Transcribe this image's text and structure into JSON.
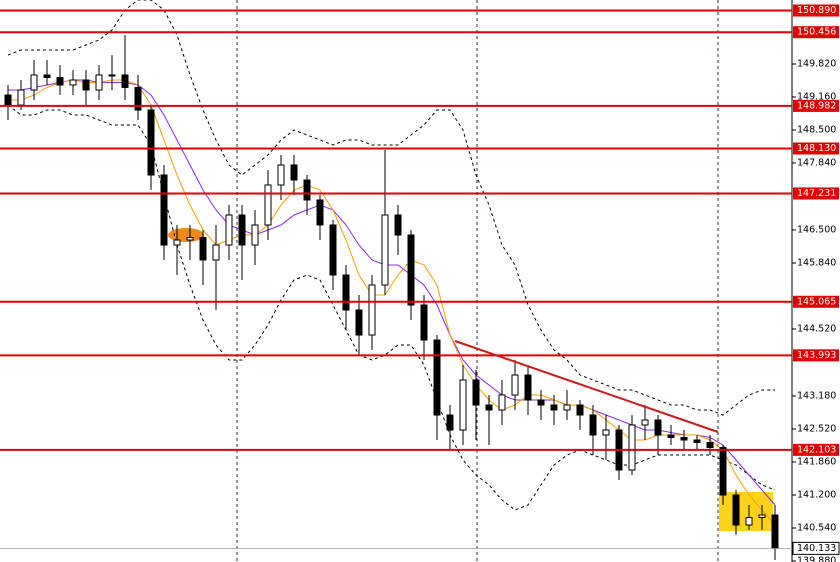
{
  "chart_data": {
    "type": "candlestick",
    "ylim": [
      139.86,
      151.1
    ],
    "yticks": [
      {
        "value": 149.82,
        "label": "149.820"
      },
      {
        "value": 149.16,
        "label": "149.160"
      },
      {
        "value": 148.5,
        "label": "148.500"
      },
      {
        "value": 147.84,
        "label": "147.840"
      },
      {
        "value": 146.5,
        "label": "146.500"
      },
      {
        "value": 145.84,
        "label": "145.840"
      },
      {
        "value": 144.52,
        "label": "144.520"
      },
      {
        "value": 143.18,
        "label": "143.180"
      },
      {
        "value": 142.52,
        "label": "142.520"
      },
      {
        "value": 141.86,
        "label": "141.860"
      },
      {
        "value": 141.2,
        "label": "141.200"
      },
      {
        "value": 140.54,
        "label": "140.540"
      },
      {
        "value": 139.88,
        "label": "139.880"
      }
    ],
    "levels": [
      {
        "value": 150.89,
        "label": "150.890"
      },
      {
        "value": 150.456,
        "label": "150.456"
      },
      {
        "value": 148.982,
        "label": "148.982"
      },
      {
        "value": 148.13,
        "label": "148.130"
      },
      {
        "value": 147.231,
        "label": "147.231"
      },
      {
        "value": 145.065,
        "label": "145.065"
      },
      {
        "value": 143.993,
        "label": "143.993"
      },
      {
        "value": 142.103,
        "label": "142.103"
      }
    ],
    "level_color": "#e00000",
    "current_price": {
      "value": 140.133,
      "label": "140.133"
    },
    "open": [
      149.2,
      149.0,
      149.3,
      149.6,
      149.55,
      149.4,
      149.5,
      149.3,
      149.6,
      149.6,
      149.35,
      148.9,
      147.6,
      146.2,
      146.3,
      146.35,
      145.9,
      146.2,
      146.8,
      146.2,
      146.6,
      147.4,
      147.8,
      147.5,
      147.1,
      146.6,
      145.6,
      144.9,
      144.4,
      145.4,
      146.8,
      146.4,
      145.0,
      144.3,
      142.8,
      142.5,
      143.5,
      143.0,
      142.9,
      143.2,
      143.6,
      143.1,
      143.0,
      142.9,
      143.0,
      142.8,
      142.4,
      142.5,
      141.7,
      142.6,
      142.7,
      142.4,
      142.35,
      142.3,
      142.25,
      142.15,
      141.2,
      140.6,
      140.75,
      140.8
    ],
    "high": [
      149.4,
      149.5,
      149.9,
      149.9,
      149.8,
      149.7,
      149.7,
      149.8,
      150.0,
      150.4,
      149.6,
      149.0,
      147.8,
      146.6,
      146.6,
      146.5,
      146.6,
      147.0,
      147.0,
      146.9,
      147.7,
      148.0,
      148.0,
      147.6,
      147.2,
      146.7,
      145.8,
      145.2,
      145.6,
      148.1,
      147.0,
      146.5,
      145.2,
      144.4,
      143.0,
      143.8,
      143.7,
      143.2,
      143.5,
      143.9,
      143.8,
      143.3,
      143.2,
      143.3,
      143.1,
      143.0,
      142.8,
      142.6,
      142.8,
      143.0,
      142.8,
      142.6,
      142.5,
      142.4,
      142.4,
      142.2,
      141.3,
      141.0,
      141.0,
      141.0
    ],
    "low": [
      148.7,
      148.9,
      149.1,
      149.4,
      149.2,
      149.2,
      149.0,
      149.1,
      149.3,
      149.1,
      148.7,
      147.3,
      145.9,
      145.6,
      145.9,
      145.4,
      144.9,
      145.9,
      145.5,
      145.8,
      146.3,
      147.1,
      147.2,
      146.8,
      146.3,
      145.3,
      144.5,
      144.0,
      144.1,
      145.2,
      146.0,
      144.7,
      143.9,
      142.3,
      142.1,
      142.2,
      142.3,
      142.2,
      142.6,
      142.9,
      142.8,
      142.7,
      142.6,
      142.7,
      142.5,
      142.0,
      141.9,
      141.5,
      141.6,
      142.3,
      142.0,
      142.2,
      142.1,
      142.1,
      142.0,
      141.0,
      140.4,
      140.5,
      140.5,
      139.9
    ],
    "close": [
      149.0,
      149.3,
      149.6,
      149.55,
      149.4,
      149.5,
      149.3,
      149.6,
      149.6,
      149.35,
      148.9,
      147.6,
      146.2,
      146.3,
      146.35,
      145.9,
      146.2,
      146.8,
      146.2,
      146.6,
      147.4,
      147.8,
      147.5,
      147.1,
      146.6,
      145.6,
      144.9,
      144.4,
      145.4,
      146.8,
      146.4,
      145.0,
      144.3,
      142.8,
      142.5,
      143.5,
      143.0,
      142.9,
      143.2,
      143.6,
      143.1,
      143.0,
      142.9,
      143.0,
      142.8,
      142.4,
      142.5,
      141.7,
      142.6,
      142.7,
      142.4,
      142.35,
      142.3,
      142.25,
      142.15,
      141.2,
      140.6,
      140.75,
      140.8,
      140.133
    ],
    "ma_fast": {
      "color": "#f5a000",
      "dashed": false,
      "values": [
        149.1,
        149.1,
        149.2,
        149.35,
        149.45,
        149.5,
        149.45,
        149.45,
        149.5,
        149.5,
        149.4,
        149.0,
        148.3,
        147.6,
        147.0,
        146.5,
        146.2,
        146.3,
        146.4,
        146.4,
        146.6,
        147.0,
        147.3,
        147.4,
        147.3,
        146.9,
        146.3,
        145.6,
        145.2,
        145.2,
        145.6,
        145.9,
        145.8,
        145.4,
        144.4,
        143.8,
        143.4,
        143.1,
        142.9,
        143.0,
        143.2,
        143.2,
        143.1,
        143.0,
        143.0,
        142.9,
        142.7,
        142.5,
        142.3,
        142.3,
        142.4,
        142.4,
        142.4,
        142.4,
        142.3,
        142.1,
        141.6,
        141.2,
        140.9,
        140.6
      ]
    },
    "ma_slow": {
      "color": "#8a2be2",
      "dashed": false,
      "values": [
        149.3,
        149.3,
        149.35,
        149.4,
        149.45,
        149.5,
        149.5,
        149.45,
        149.45,
        149.45,
        149.4,
        149.2,
        148.8,
        148.3,
        147.8,
        147.3,
        146.9,
        146.6,
        146.5,
        146.4,
        146.5,
        146.6,
        146.8,
        146.9,
        147.0,
        146.9,
        146.6,
        146.2,
        145.9,
        145.8,
        145.8,
        145.6,
        145.4,
        145.0,
        144.4,
        143.9,
        143.6,
        143.4,
        143.2,
        143.1,
        143.1,
        143.1,
        143.1,
        143.0,
        143.0,
        142.9,
        142.8,
        142.7,
        142.6,
        142.5,
        142.5,
        142.45,
        142.4,
        142.4,
        142.35,
        142.2,
        141.9,
        141.6,
        141.3,
        141.0
      ]
    },
    "band_upper": {
      "color": "#000000",
      "dashed": true,
      "values": [
        150.0,
        150.1,
        150.1,
        150.1,
        150.1,
        150.1,
        150.2,
        150.3,
        150.5,
        150.9,
        151.1,
        151.1,
        150.9,
        150.4,
        149.6,
        148.9,
        148.3,
        147.8,
        147.6,
        147.8,
        148.0,
        148.3,
        148.5,
        148.4,
        148.3,
        148.2,
        148.3,
        148.3,
        148.2,
        148.2,
        148.2,
        148.4,
        148.6,
        148.9,
        148.9,
        148.5,
        147.6,
        147.0,
        146.2,
        145.8,
        145.0,
        144.5,
        144.1,
        143.9,
        143.6,
        143.5,
        143.4,
        143.3,
        143.3,
        143.2,
        143.1,
        143.0,
        143.0,
        142.9,
        142.9,
        142.8,
        143.0,
        143.2,
        143.3,
        143.3
      ]
    },
    "band_lower": {
      "color": "#000000",
      "dashed": true,
      "values": [
        149.0,
        148.8,
        148.8,
        148.9,
        148.9,
        148.8,
        148.8,
        148.7,
        148.6,
        148.6,
        148.6,
        148.2,
        147.2,
        146.2,
        145.4,
        144.7,
        144.2,
        143.9,
        143.9,
        144.2,
        144.6,
        145.1,
        145.5,
        145.6,
        145.5,
        145.0,
        144.5,
        144.0,
        143.9,
        144.0,
        144.2,
        144.2,
        143.8,
        143.1,
        142.4,
        141.9,
        141.6,
        141.4,
        141.1,
        140.9,
        141.0,
        141.4,
        141.8,
        142.0,
        142.1,
        142.0,
        141.9,
        141.8,
        141.8,
        141.9,
        142.0,
        142.0,
        142.0,
        142.0,
        142.0,
        141.9,
        141.8,
        141.6,
        141.4,
        141.3
      ]
    }
  }
}
